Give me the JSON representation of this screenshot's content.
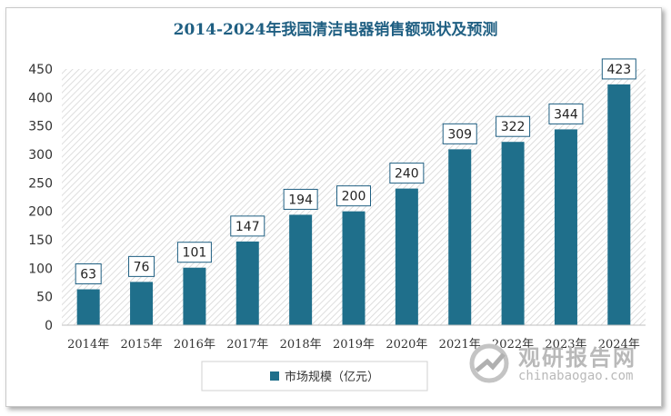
{
  "chart_data": {
    "type": "bar",
    "title": "2014-2024年我国清洁电器销售额现状及预测",
    "categories": [
      "2014年",
      "2015年",
      "2016年",
      "2017年",
      "2018年",
      "2019年",
      "2020年",
      "2021年",
      "2022年",
      "2023年",
      "2024年"
    ],
    "series": [
      {
        "name": "市场规模（亿元）",
        "values": [
          63,
          76,
          101,
          147,
          194,
          200,
          240,
          309,
          322,
          344,
          423
        ]
      }
    ],
    "ylim": [
      0,
      450
    ],
    "yticks": [
      0,
      50,
      100,
      150,
      200,
      250,
      300,
      350,
      400,
      450
    ],
    "grid": false,
    "legend": "bottom",
    "colors": {
      "bar": "#1f6f8b",
      "title": "#1f5f82",
      "label_border": "#1f5f82"
    }
  },
  "watermark": {
    "cn": "观研报告网",
    "en": "chinabaogao.com"
  }
}
